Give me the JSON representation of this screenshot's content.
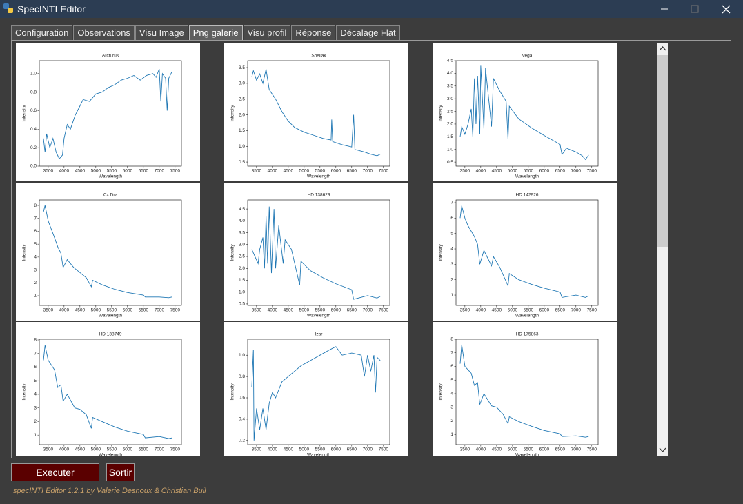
{
  "window": {
    "title": "SpecINTI Editor"
  },
  "tabs": [
    "Configuration",
    "Observations",
    "Visu Image",
    "Png galerie",
    "Visu profil",
    "Réponse",
    "Décalage Flat"
  ],
  "active_tab": 3,
  "gallery": [
    {
      "type": "line",
      "title": "Arcturus",
      "x_label": "Wavelength",
      "y_label": "Intensity",
      "color": "#1f77b4",
      "x": [
        3350,
        3400,
        3450,
        3550,
        3650,
        3750,
        3850,
        3950,
        4000,
        4100,
        4200,
        4350,
        4500,
        4600,
        4800,
        5000,
        5200,
        5400,
        5600,
        5800,
        6000,
        6200,
        6400,
        6600,
        6800,
        6900,
        7000,
        7050,
        7100,
        7200,
        7250,
        7300,
        7400
      ],
      "values": [
        0.3,
        0.15,
        0.35,
        0.2,
        0.3,
        0.15,
        0.08,
        0.12,
        0.3,
        0.45,
        0.4,
        0.55,
        0.65,
        0.72,
        0.7,
        0.78,
        0.8,
        0.85,
        0.88,
        0.93,
        0.95,
        0.98,
        0.93,
        0.98,
        1.0,
        0.96,
        1.05,
        0.7,
        1.0,
        0.95,
        0.6,
        0.95,
        1.02
      ],
      "xlim": [
        3220,
        7700
      ],
      "ylim": [
        0,
        1.14
      ],
      "xticks": [
        3500,
        4000,
        4500,
        5000,
        5500,
        6000,
        6500,
        7000,
        7500
      ],
      "yticks": [
        {
          "value": 0,
          "label": "0.0"
        },
        0.2,
        0.4,
        0.6,
        0.8,
        {
          "value": 1,
          "label": "1.0"
        }
      ]
    },
    {
      "type": "line",
      "title": "Sheliak",
      "x_label": "Wavelength",
      "y_label": "Intensity",
      "color": "#1f77b4",
      "x": [
        3350,
        3400,
        3500,
        3600,
        3700,
        3800,
        3900,
        4100,
        4300,
        4500,
        4700,
        5000,
        5300,
        5600,
        5850,
        5870,
        5900,
        6200,
        6500,
        6560,
        6600,
        6900,
        7100,
        7300,
        7400
      ],
      "values": [
        3.2,
        3.4,
        3.1,
        3.3,
        3.0,
        3.45,
        2.8,
        2.5,
        2.1,
        1.8,
        1.6,
        1.45,
        1.35,
        1.25,
        1.2,
        1.85,
        1.15,
        1.05,
        0.98,
        2.0,
        0.9,
        0.82,
        0.75,
        0.7,
        0.75
      ],
      "xlim": [
        3220,
        7700
      ],
      "ylim": [
        0.37,
        3.72
      ],
      "xticks": [
        3500,
        4000,
        4500,
        5000,
        5500,
        6000,
        6500,
        7000,
        7500
      ],
      "yticks": [
        0.5,
        {
          "value": 1,
          "label": "1.0"
        },
        1.5,
        {
          "value": 2,
          "label": "2.0"
        },
        2.5,
        {
          "value": 3,
          "label": "3.0"
        },
        3.5
      ]
    },
    {
      "type": "line",
      "title": "Vega",
      "x_label": "Wavelength",
      "y_label": "Intensity",
      "color": "#1f77b4",
      "x": [
        3350,
        3400,
        3500,
        3600,
        3700,
        3750,
        3800,
        3850,
        3900,
        3970,
        4000,
        4100,
        4150,
        4340,
        4400,
        4600,
        4800,
        4860,
        4900,
        5200,
        5600,
        6000,
        6500,
        6560,
        6700,
        7000,
        7200,
        7300,
        7400
      ],
      "values": [
        1.5,
        1.9,
        1.6,
        2.0,
        2.6,
        1.5,
        3.8,
        2.0,
        3.9,
        1.6,
        4.3,
        1.8,
        4.2,
        1.9,
        3.8,
        3.3,
        2.9,
        1.4,
        2.7,
        2.2,
        1.85,
        1.55,
        1.2,
        0.8,
        1.05,
        0.9,
        0.75,
        0.6,
        0.78
      ],
      "xlim": [
        3220,
        7700
      ],
      "ylim": [
        0.34,
        4.5
      ],
      "xticks": [
        3500,
        4000,
        4500,
        5000,
        5500,
        6000,
        6500,
        7000,
        7500
      ],
      "yticks": [
        0.5,
        {
          "value": 1,
          "label": "1.0"
        },
        1.5,
        {
          "value": 2,
          "label": "2.0"
        },
        2.5,
        {
          "value": 3,
          "label": "3.0"
        },
        3.5,
        {
          "value": 4,
          "label": "4.0"
        },
        4.5
      ]
    },
    {
      "type": "line",
      "title": "Cx Dra",
      "x_label": "Wavelength",
      "y_label": "Intensity",
      "color": "#1f77b4",
      "x": [
        3350,
        3400,
        3500,
        3700,
        3800,
        3900,
        3970,
        4100,
        4300,
        4500,
        4700,
        4860,
        4900,
        5200,
        5600,
        6000,
        6500,
        6560,
        7000,
        7300,
        7400
      ],
      "values": [
        7.5,
        8.0,
        6.8,
        5.5,
        4.8,
        4.3,
        3.2,
        3.8,
        3.2,
        2.8,
        2.4,
        1.7,
        2.2,
        1.85,
        1.5,
        1.25,
        1.05,
        0.9,
        0.9,
        0.85,
        0.9
      ],
      "xlim": [
        3220,
        7700
      ],
      "ylim": [
        0.25,
        8.43
      ],
      "xticks": [
        3500,
        4000,
        4500,
        5000,
        5500,
        6000,
        6500,
        7000,
        7500
      ],
      "yticks": [
        1,
        2,
        3,
        4,
        5,
        6,
        7,
        8
      ]
    },
    {
      "type": "line",
      "title": "HD 138629",
      "x_label": "Wavelength",
      "y_label": "Intensity",
      "color": "#1f77b4",
      "x": [
        3350,
        3450,
        3550,
        3600,
        3700,
        3750,
        3800,
        3850,
        3900,
        3970,
        4050,
        4100,
        4200,
        4340,
        4400,
        4600,
        4860,
        4900,
        5200,
        5600,
        6000,
        6500,
        6560,
        7000,
        7300,
        7400
      ],
      "values": [
        2.8,
        2.5,
        2.2,
        2.8,
        3.3,
        2.0,
        4.2,
        2.2,
        4.6,
        1.8,
        4.5,
        2.0,
        3.8,
        2.2,
        3.2,
        2.8,
        1.3,
        2.3,
        1.9,
        1.6,
        1.35,
        1.1,
        0.7,
        0.85,
        0.75,
        0.82
      ],
      "xlim": [
        3220,
        7700
      ],
      "ylim": [
        0.44,
        4.88
      ],
      "xticks": [
        3500,
        4000,
        4500,
        5000,
        5500,
        6000,
        6500,
        7000,
        7500
      ],
      "yticks": [
        0.5,
        {
          "value": 1,
          "label": "1.0"
        },
        1.5,
        {
          "value": 2,
          "label": "2.0"
        },
        2.5,
        {
          "value": 3,
          "label": "3.0"
        },
        3.5,
        {
          "value": 4,
          "label": "4.0"
        },
        4.5
      ]
    },
    {
      "type": "line",
      "title": "HD 142926",
      "x_label": "Wavelength",
      "y_label": "Intensity",
      "color": "#1f77b4",
      "x": [
        3350,
        3400,
        3500,
        3600,
        3800,
        3900,
        3970,
        4100,
        4340,
        4400,
        4600,
        4860,
        4900,
        5200,
        5600,
        6000,
        6500,
        6560,
        7000,
        7300,
        7400
      ],
      "values": [
        6.0,
        6.8,
        6.0,
        5.5,
        4.8,
        4.3,
        3.0,
        3.9,
        2.9,
        3.5,
        2.8,
        1.6,
        2.4,
        2.0,
        1.7,
        1.45,
        1.2,
        0.85,
        1.0,
        0.85,
        0.95
      ],
      "xlim": [
        3220,
        7700
      ],
      "ylim": [
        0.33,
        7.18
      ],
      "xticks": [
        3500,
        4000,
        4500,
        5000,
        5500,
        6000,
        6500,
        7000,
        7500
      ],
      "yticks": [
        1,
        2,
        3,
        4,
        5,
        6,
        7
      ]
    },
    {
      "type": "line",
      "title": "HD 138749",
      "x_label": "Wavelength",
      "y_label": "Intensity",
      "color": "#1f77b4",
      "x": [
        3350,
        3400,
        3500,
        3700,
        3800,
        3900,
        3970,
        4100,
        4340,
        4500,
        4700,
        4860,
        4900,
        5200,
        5600,
        6000,
        6500,
        6560,
        7000,
        7300,
        7400
      ],
      "values": [
        6.5,
        7.6,
        6.5,
        5.8,
        4.5,
        4.7,
        3.5,
        4.0,
        3.0,
        2.9,
        2.5,
        1.5,
        2.3,
        2.0,
        1.6,
        1.3,
        1.05,
        0.8,
        0.9,
        0.75,
        0.8
      ],
      "xlim": [
        3220,
        7700
      ],
      "ylim": [
        0.3,
        8.05
      ],
      "xticks": [
        3500,
        4000,
        4500,
        5000,
        5500,
        6000,
        6500,
        7000,
        7500
      ],
      "yticks": [
        1,
        2,
        3,
        4,
        5,
        6,
        7,
        8
      ]
    },
    {
      "type": "line",
      "title": "Izar",
      "x_label": "Wavelength",
      "y_label": "Intensity",
      "color": "#1f77b4",
      "x": [
        3350,
        3400,
        3420,
        3500,
        3600,
        3700,
        3800,
        3900,
        4000,
        4100,
        4300,
        4500,
        4700,
        4900,
        5200,
        5500,
        5800,
        6000,
        6200,
        6500,
        6800,
        6900,
        7000,
        7100,
        7200,
        7250,
        7300,
        7400
      ],
      "values": [
        0.7,
        1.05,
        0.2,
        0.5,
        0.3,
        0.5,
        0.3,
        0.55,
        0.65,
        0.6,
        0.75,
        0.8,
        0.85,
        0.9,
        0.95,
        1.0,
        1.05,
        1.08,
        1.0,
        1.02,
        1.0,
        0.8,
        1.0,
        0.85,
        1.0,
        0.65,
        0.98,
        0.95
      ],
      "xlim": [
        3220,
        7700
      ],
      "ylim": [
        0.16,
        1.15
      ],
      "xticks": [
        3500,
        4000,
        4500,
        5000,
        5500,
        6000,
        6500,
        7000,
        7500
      ],
      "yticks": [
        0.2,
        0.4,
        0.6,
        0.8,
        {
          "value": 1,
          "label": "1.0"
        }
      ]
    },
    {
      "type": "line",
      "title": "HD 175863",
      "x_label": "Wavelength",
      "y_label": "Intensity",
      "color": "#1f77b4",
      "x": [
        3350,
        3400,
        3500,
        3700,
        3800,
        3900,
        3970,
        4100,
        4340,
        4500,
        4700,
        4860,
        4900,
        5200,
        5600,
        6000,
        6500,
        6560,
        7000,
        7300,
        7400
      ],
      "values": [
        6.2,
        7.6,
        6.0,
        5.5,
        4.6,
        4.8,
        3.2,
        4.0,
        3.1,
        3.0,
        2.5,
        1.8,
        2.3,
        1.95,
        1.6,
        1.3,
        1.05,
        0.85,
        0.9,
        0.8,
        0.85
      ],
      "xlim": [
        3220,
        7700
      ],
      "ylim": [
        0.25,
        8.0
      ],
      "xticks": [
        3500,
        4000,
        4500,
        5000,
        5500,
        6000,
        6500,
        7000,
        7500
      ],
      "yticks": [
        1,
        2,
        3,
        4,
        5,
        6,
        7,
        8
      ]
    }
  ],
  "buttons": [
    "Executer",
    "Sortir"
  ],
  "footer": "specINTI Editor 1.2.1 by Valerie Desnoux & Christian Buil"
}
